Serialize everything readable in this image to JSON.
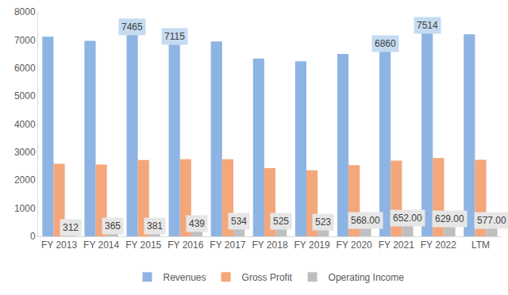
{
  "chart_data": {
    "type": "bar",
    "categories": [
      "FY 2013",
      "FY 2014",
      "FY 2015",
      "FY 2016",
      "FY 2017",
      "FY 2018",
      "FY 2019",
      "FY 2020",
      "FY 2021",
      "FY 2022",
      "LTM"
    ],
    "series": [
      {
        "name": "Revenues",
        "color": "#8eb4e3",
        "values": [
          7120,
          6970,
          7465,
          7115,
          6950,
          6340,
          6240,
          6500,
          6860,
          7514,
          7200
        ],
        "data_labels": true,
        "value_labels": [
          null,
          null,
          "7465",
          "7115",
          null,
          null,
          null,
          null,
          "6860",
          "7514",
          null
        ]
      },
      {
        "name": "Gross Profit",
        "color": "#f4a77a",
        "values": [
          2590,
          2560,
          2720,
          2750,
          2750,
          2430,
          2350,
          2540,
          2700,
          2790,
          2730
        ]
      },
      {
        "name": "Operating Income",
        "color": "#bfbfbf",
        "values": [
          312,
          365,
          381,
          439,
          534,
          525,
          523,
          568,
          652,
          629,
          577
        ],
        "data_labels": true,
        "value_labels": [
          "312",
          "365",
          "381",
          "439",
          "534",
          "525",
          "523",
          "568.00",
          "652.00",
          "629.00",
          "577.00"
        ]
      }
    ],
    "ylim": [
      0,
      8000
    ],
    "yticks": [
      0,
      1000,
      2000,
      3000,
      4000,
      5000,
      6000,
      7000,
      8000
    ],
    "grid": false,
    "legend": "bottom"
  }
}
